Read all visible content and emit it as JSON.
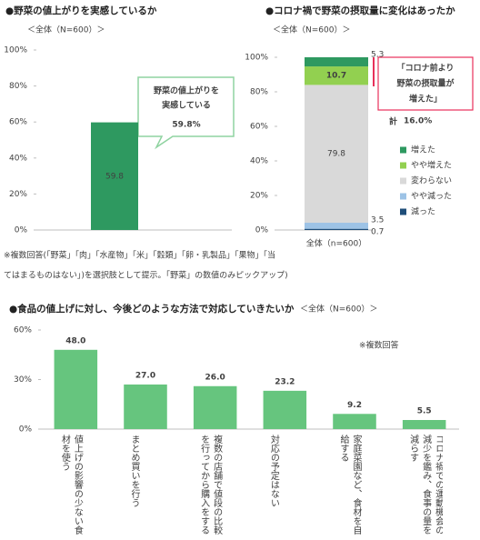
{
  "chart_data": [
    {
      "type": "bar",
      "title": "●野菜の値上がりを実感しているか",
      "subtitle": "＜全体（N=600）＞",
      "categories": [
        null
      ],
      "values": [
        59.8
      ],
      "color": "#2e9960",
      "value_label_color": "#ffffff",
      "ylim": [
        0,
        100
      ],
      "yticks": [
        {
          "value": 0,
          "label": "0%"
        },
        {
          "value": 20,
          "label": "20%"
        },
        {
          "value": 40,
          "label": "40%"
        },
        {
          "value": 60,
          "label": "60%"
        },
        {
          "value": 80,
          "label": "80%"
        },
        {
          "value": 100,
          "label": "100%"
        }
      ],
      "callout": [
        "野菜の値上がりを",
        "実感している"
      ],
      "callout_value": "59.8%",
      "notes": [
        "※複数回答(「野菜」「肉」「水産物」「米」「穀類」「卵・乳製品」「果物」「当",
        "てはまるものはない」)を選択肢として提示。「野菜」の数値のみピックアップ)"
      ]
    },
    {
      "type": "stacked_bar",
      "title": "●コロナ禍で野菜の摂取量に変化はあったか",
      "subtitle": "＜全体（N=600）＞",
      "categories": [
        "全体（n=600）"
      ],
      "series": [
        {
          "name": "増えた",
          "color": "#2e9960",
          "label_color": "#ffffff",
          "values": [
            5.3
          ]
        },
        {
          "name": "やや増えた",
          "color": "#92d050",
          "label_color": "#ffffff",
          "values": [
            10.7
          ]
        },
        {
          "name": "変わらない",
          "color": "#d9d9d9",
          "label_color": "#404040",
          "values": [
            79.8
          ]
        },
        {
          "name": "やや減った",
          "color": "#9dc3e6",
          "label_color": "#404040",
          "values": [
            3.5
          ]
        },
        {
          "name": "減った",
          "color": "#1f4e79",
          "label_color": "#404040",
          "values": [
            0.7
          ]
        }
      ],
      "ylim": [
        0,
        100
      ],
      "yticks": [
        {
          "value": 0,
          "label": "0%"
        },
        {
          "value": 20,
          "label": "20%"
        },
        {
          "value": 40,
          "label": "40%"
        },
        {
          "value": 60,
          "label": "60%"
        },
        {
          "value": 80,
          "label": "80%"
        },
        {
          "value": 100,
          "label": "100%"
        }
      ],
      "legend": "right",
      "callout": [
        "「コロナ前より",
        "野菜の摂取量が",
        "増えた」"
      ],
      "callout_total_label": "計",
      "callout_value": "16.0%"
    },
    {
      "type": "bar",
      "title": "●食品の値上げに対し、今後どのような方法で対応していきたいか",
      "subtitle": "＜全体（N=600）＞",
      "categories": [
        "値上げの影響の少ない食材を使う",
        "まとめ買いを行う",
        "複数の店舗で値段の比較を行ってから購入をする",
        "対応の予定はない",
        "家庭菜園など、食材を自給する",
        "コロナ禍での運動機会の減少を鑑み、食事の量を減らす"
      ],
      "values": [
        48.0,
        27.0,
        26.0,
        23.2,
        9.2,
        5.5
      ],
      "value_labels": [
        "48.0",
        "27.0",
        "26.0",
        "23.2",
        "9.2",
        "5.5"
      ],
      "value_label_colors": [
        "#e8305a",
        "#404040",
        "#404040",
        "#404040",
        "#e8305a",
        "#404040"
      ],
      "color": "#66c57e",
      "ylim": [
        0,
        60
      ],
      "yticks": [
        {
          "value": 0,
          "label": "0%"
        },
        {
          "value": 30,
          "label": "30%"
        },
        {
          "value": 60,
          "label": "60%"
        }
      ],
      "notes": [
        "※複数回答"
      ]
    }
  ]
}
